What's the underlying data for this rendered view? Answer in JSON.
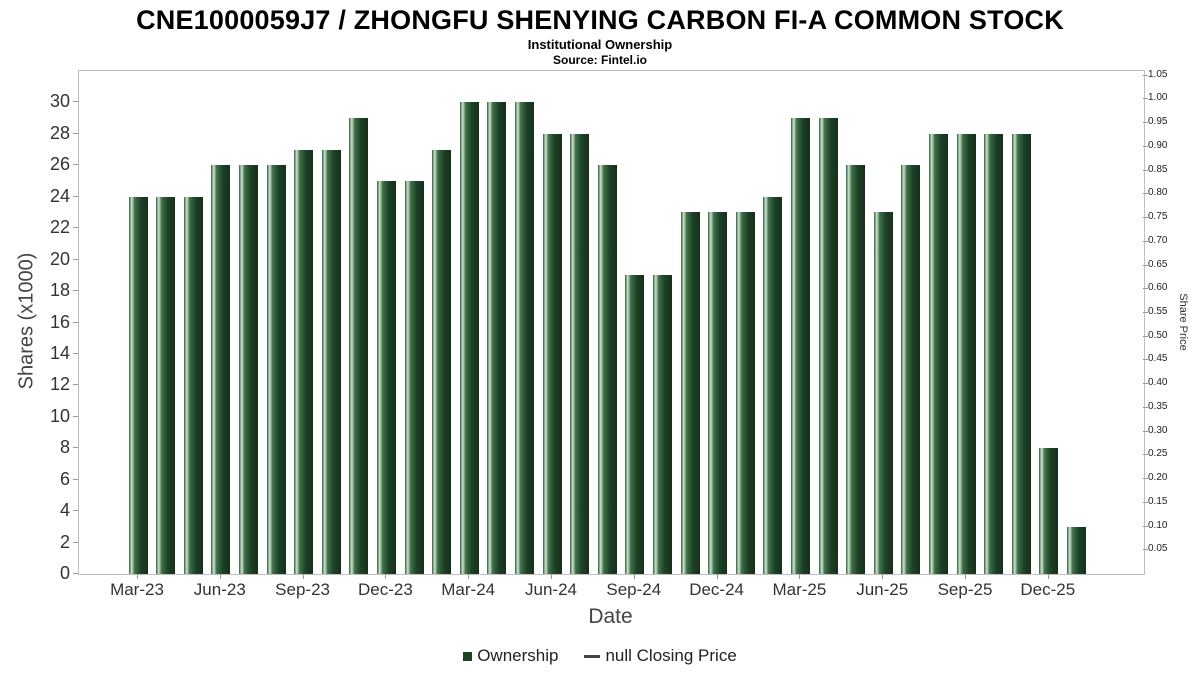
{
  "title": "CNE1000059J7 / ZHONGFU SHENYING CARBON FI-A COMMON STOCK",
  "subtitle": "Institutional Ownership",
  "source": "Source: Fintel.io",
  "chart_data": {
    "type": "bar",
    "title": "CNE1000059J7 / ZHONGFU SHENYING CARBON FI-A COMMON STOCK",
    "subtitle": "Institutional Ownership",
    "source": "Source: Fintel.io",
    "xlabel": "Date",
    "ylabel_left": "Shares (x1000)",
    "ylabel_right": "Share Price",
    "grid": false,
    "legend_position": "bottom",
    "bar_color": "#1d4326",
    "categories": [
      "Mar-23",
      "Apr-23",
      "May-23",
      "Jun-23",
      "Jul-23",
      "Aug-23",
      "Sep-23",
      "Oct-23",
      "Nov-23",
      "Dec-23",
      "Jan-24",
      "Feb-24",
      "Mar-24",
      "Apr-24",
      "May-24",
      "Jun-24",
      "Jul-24",
      "Aug-24",
      "Sep-24",
      "Oct-24",
      "Nov-24",
      "Dec-24",
      "Jan-25",
      "Feb-25",
      "Mar-25",
      "Apr-25",
      "May-25",
      "Jun-25",
      "Jul-25",
      "Aug-25",
      "Sep-25",
      "Oct-25",
      "Nov-25",
      "Dec-25",
      "Jan-26"
    ],
    "values": [
      24,
      24,
      24,
      26,
      26,
      26,
      27,
      27,
      29,
      25,
      25,
      27,
      30,
      30,
      30,
      28,
      28,
      26,
      19,
      19,
      23,
      23,
      23,
      24,
      29,
      29,
      26,
      23,
      26,
      28,
      28,
      28,
      28,
      8,
      3
    ],
    "series": [
      {
        "name": "Ownership",
        "values": [
          24,
          24,
          24,
          26,
          26,
          26,
          27,
          27,
          29,
          25,
          25,
          27,
          30,
          30,
          30,
          28,
          28,
          26,
          19,
          19,
          23,
          23,
          23,
          24,
          29,
          29,
          26,
          23,
          26,
          28,
          28,
          28,
          28,
          8,
          3
        ]
      }
    ],
    "x_tick_labels": [
      "Mar-23",
      "Jun-23",
      "Sep-23",
      "Dec-23",
      "Mar-24",
      "Jun-24",
      "Sep-24",
      "Dec-24",
      "Mar-25",
      "Jun-25",
      "Sep-25",
      "Dec-25"
    ],
    "x_tick_indices": [
      0,
      3,
      6,
      9,
      12,
      15,
      18,
      21,
      24,
      27,
      30,
      33
    ],
    "left_axis": {
      "min": 0,
      "max": 32,
      "ticks": [
        0,
        2,
        4,
        6,
        8,
        10,
        12,
        14,
        16,
        18,
        20,
        22,
        24,
        26,
        28,
        30
      ]
    },
    "right_axis": {
      "min": 0,
      "max": 1.06,
      "ticks": [
        0.05,
        0.1,
        0.15,
        0.2,
        0.25,
        0.3,
        0.35,
        0.4,
        0.45,
        0.5,
        0.55,
        0.6,
        0.65,
        0.7,
        0.75,
        0.8,
        0.85,
        0.9,
        0.95,
        1.0,
        1.05
      ]
    },
    "legend": [
      {
        "label": "Ownership",
        "marker": "square",
        "color": "#1d4326"
      },
      {
        "label": "null Closing Price",
        "marker": "line",
        "color": "#444444"
      }
    ]
  }
}
